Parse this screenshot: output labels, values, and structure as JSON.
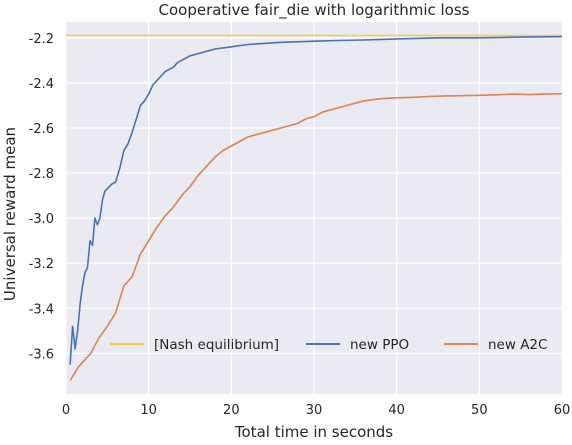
{
  "chart_data": {
    "type": "line",
    "title": "Cooperative fair_die with logarithmic loss",
    "xlabel": "Total time in seconds",
    "ylabel": "Universal reward mean",
    "xlim": [
      0,
      60
    ],
    "ylim": [
      -3.78,
      -2.13
    ],
    "xticks": [
      0,
      10,
      20,
      30,
      40,
      50,
      60
    ],
    "yticks": [
      -3.6,
      -3.4,
      -3.2,
      -3.0,
      -2.8,
      -2.6,
      -2.4,
      -2.2
    ],
    "xtick_labels": [
      "0",
      "10",
      "20",
      "30",
      "40",
      "50",
      "60"
    ],
    "ytick_labels": [
      "-3.6",
      "-3.4",
      "-3.2",
      "-3.0",
      "-2.8",
      "-2.6",
      "-2.4",
      "-2.2"
    ],
    "grid": true,
    "legend_position": "lower-center",
    "background_color": "#eaeaf2",
    "series": [
      {
        "name": "[Nash equilibrium]",
        "color": "#f7d034",
        "x": [
          0,
          60
        ],
        "y": [
          -2.19,
          -2.19
        ]
      },
      {
        "name": "new PPO",
        "color": "#4c72b0",
        "x": [
          0.5,
          0.8,
          1.1,
          1.4,
          1.7,
          2.0,
          2.3,
          2.6,
          2.9,
          3.2,
          3.5,
          3.8,
          4.1,
          4.4,
          4.7,
          5.0,
          5.5,
          6.0,
          6.5,
          7.0,
          7.5,
          8.0,
          8.5,
          9.0,
          9.5,
          10.0,
          10.5,
          11.0,
          11.5,
          12.0,
          12.5,
          13.0,
          13.5,
          14.0,
          15.0,
          16.0,
          17.0,
          18.0,
          19.0,
          20.0,
          22.0,
          24.0,
          26.0,
          28.0,
          30.0,
          33.0,
          36.0,
          40.0,
          45.0,
          50.0,
          55.0,
          60.0
        ],
        "y": [
          -3.65,
          -3.48,
          -3.58,
          -3.5,
          -3.38,
          -3.3,
          -3.24,
          -3.22,
          -3.1,
          -3.12,
          -3.0,
          -3.03,
          -3.0,
          -2.92,
          -2.88,
          -2.87,
          -2.85,
          -2.84,
          -2.78,
          -2.7,
          -2.67,
          -2.62,
          -2.56,
          -2.5,
          -2.48,
          -2.45,
          -2.41,
          -2.39,
          -2.37,
          -2.35,
          -2.34,
          -2.33,
          -2.31,
          -2.3,
          -2.28,
          -2.27,
          -2.26,
          -2.25,
          -2.245,
          -2.24,
          -2.23,
          -2.225,
          -2.22,
          -2.218,
          -2.215,
          -2.212,
          -2.21,
          -2.205,
          -2.2,
          -2.2,
          -2.197,
          -2.195
        ]
      },
      {
        "name": "new A2C",
        "color": "#dd8452",
        "x": [
          0.5,
          1.0,
          1.5,
          2.0,
          3.0,
          4.0,
          5.0,
          6.0,
          7.0,
          8.0,
          9.0,
          10.0,
          11.0,
          12.0,
          13.0,
          14.0,
          15.0,
          16.0,
          17.0,
          18.0,
          19.0,
          20.0,
          21.0,
          22.0,
          23.0,
          24.0,
          25.0,
          26.0,
          27.0,
          28.0,
          29.0,
          30.0,
          31.0,
          32.0,
          33.0,
          34.0,
          35.0,
          36.0,
          37.0,
          38.0,
          39.0,
          40.0,
          42.0,
          44.0,
          46.0,
          48.0,
          50.0,
          52.0,
          54.0,
          56.0,
          58.0,
          60.0
        ],
        "y": [
          -3.72,
          -3.69,
          -3.66,
          -3.64,
          -3.6,
          -3.53,
          -3.48,
          -3.42,
          -3.3,
          -3.26,
          -3.16,
          -3.1,
          -3.04,
          -2.99,
          -2.95,
          -2.9,
          -2.86,
          -2.81,
          -2.77,
          -2.73,
          -2.7,
          -2.68,
          -2.66,
          -2.64,
          -2.63,
          -2.62,
          -2.61,
          -2.6,
          -2.59,
          -2.58,
          -2.56,
          -2.55,
          -2.53,
          -2.52,
          -2.51,
          -2.5,
          -2.49,
          -2.48,
          -2.475,
          -2.47,
          -2.468,
          -2.466,
          -2.464,
          -2.46,
          -2.458,
          -2.457,
          -2.455,
          -2.453,
          -2.45,
          -2.452,
          -2.45,
          -2.448
        ]
      }
    ]
  }
}
